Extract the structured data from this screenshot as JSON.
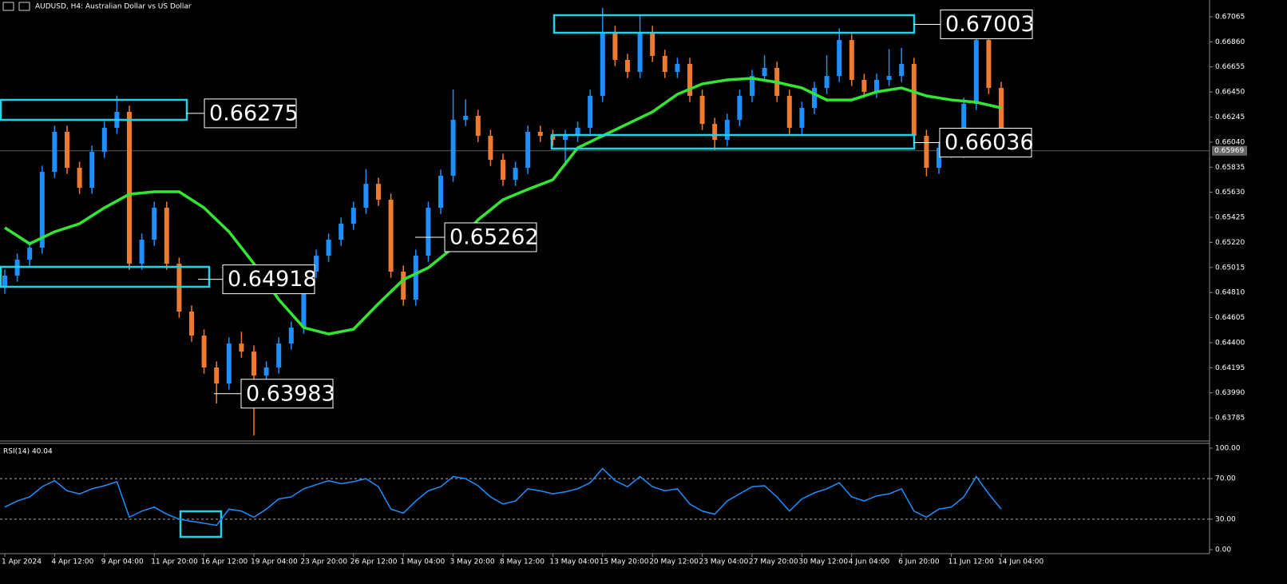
{
  "chart_data": [
    {
      "type": "candlestick",
      "title": "AUDUSD, H4:  Australian Dollar vs US Dollar",
      "categories": [
        "1 Apr 2024",
        null,
        null,
        null,
        "4 Apr 12:00",
        null,
        null,
        null,
        "9 Apr 04:00",
        null,
        null,
        null,
        "11 Apr 20:00",
        null,
        null,
        null,
        "16 Apr 12:00",
        null,
        null,
        null,
        "19 Apr 04:00",
        null,
        null,
        null,
        "23 Apr 20:00",
        null,
        null,
        null,
        "26 Apr 12:00",
        null,
        null,
        null,
        "1 May 04:00",
        null,
        null,
        null,
        "3 May 20:00",
        null,
        null,
        null,
        "8 May 12:00",
        null,
        null,
        null,
        "13 May 04:00",
        null,
        null,
        null,
        "15 May 20:00",
        null,
        null,
        null,
        "20 May 12:00",
        null,
        null,
        null,
        "23 May 04:00",
        null,
        null,
        null,
        "27 May 20:00",
        null,
        null,
        null,
        "30 May 12:00",
        null,
        null,
        null,
        "4 Jun 04:00",
        null,
        null,
        null,
        "6 Jun 20:00",
        null,
        null,
        null,
        "11 Jun 12:00",
        null,
        null,
        null,
        "14 Jun 04:00"
      ],
      "open": [
        0.6485,
        0.64948,
        0.65079,
        0.65177,
        0.65797,
        0.66124,
        0.6583,
        0.65667,
        0.65961,
        0.66157,
        0.66287,
        0.65046,
        0.65242,
        0.65503,
        0.65046,
        0.64654,
        0.64458,
        0.64197,
        0.64066,
        0.64393,
        0.64327,
        0.64131,
        0.64197,
        0.64393,
        0.64523,
        0.64981,
        0.65111,
        0.65242,
        0.65373,
        0.65503,
        0.65699,
        0.65569,
        0.64981,
        0.64752,
        0.65111,
        0.65503,
        0.65765,
        0.66222,
        0.66255,
        0.66091,
        0.65895,
        0.65732,
        0.6583,
        0.66124,
        0.66091,
        0.66059,
        0.66091,
        0.66157,
        0.66418,
        0.66941,
        0.66712,
        0.66614,
        0.66941,
        0.66745,
        0.66614,
        0.66679,
        0.66418,
        0.66189,
        0.66059,
        0.66222,
        0.66418,
        0.66581,
        0.66647,
        0.66418,
        0.66157,
        0.6632,
        0.66483,
        0.66581,
        0.66875,
        0.66549,
        0.66451,
        0.66549,
        0.66581,
        0.66679,
        0.66091,
        0.6583,
        0.65993,
        0.65961,
        0.66353,
        0.66875,
        0.66483
      ],
      "high": [
        0.64998,
        0.65129,
        0.65227,
        0.65847,
        0.66174,
        0.66174,
        0.6588,
        0.66011,
        0.66207,
        0.6642,
        0.66337,
        0.65292,
        0.65553,
        0.65553,
        0.65096,
        0.64704,
        0.64508,
        0.64247,
        0.64443,
        0.6449,
        0.64377,
        0.64247,
        0.64443,
        0.64573,
        0.65031,
        0.65161,
        0.65292,
        0.65423,
        0.65553,
        0.6582,
        0.65749,
        0.65619,
        0.65031,
        0.65161,
        0.65553,
        0.65815,
        0.6647,
        0.6639,
        0.66305,
        0.66141,
        0.65945,
        0.6588,
        0.66174,
        0.66174,
        0.66141,
        0.66141,
        0.66207,
        0.66468,
        0.67137,
        0.66991,
        0.66762,
        0.67084,
        0.66991,
        0.66795,
        0.66729,
        0.66729,
        0.66468,
        0.66239,
        0.66272,
        0.66468,
        0.66631,
        0.6675,
        0.66697,
        0.66468,
        0.6637,
        0.66533,
        0.6675,
        0.6697,
        0.66925,
        0.66599,
        0.66599,
        0.668,
        0.6681,
        0.66729,
        0.66141,
        0.66043,
        0.66043,
        0.66403,
        0.67006,
        0.66925,
        0.66533
      ],
      "low": [
        0.648,
        0.64898,
        0.65029,
        0.65127,
        0.65747,
        0.6578,
        0.65617,
        0.65617,
        0.65911,
        0.66107,
        0.64996,
        0.64996,
        0.65192,
        0.64996,
        0.64604,
        0.64408,
        0.64147,
        0.63903,
        0.64016,
        0.64277,
        0.63641,
        0.64081,
        0.64147,
        0.64343,
        0.64473,
        0.64931,
        0.65061,
        0.65192,
        0.65323,
        0.65453,
        0.65519,
        0.64931,
        0.64702,
        0.64702,
        0.65061,
        0.65453,
        0.65715,
        0.66172,
        0.66041,
        0.65845,
        0.65682,
        0.65682,
        0.6578,
        0.66041,
        0.66009,
        0.6585,
        0.66041,
        0.66107,
        0.66368,
        0.66662,
        0.66564,
        0.66564,
        0.66695,
        0.66564,
        0.66564,
        0.66368,
        0.66139,
        0.65975,
        0.66009,
        0.66172,
        0.66368,
        0.66531,
        0.66368,
        0.66107,
        0.66107,
        0.6627,
        0.66433,
        0.66531,
        0.66499,
        0.66401,
        0.66401,
        0.66499,
        0.66531,
        0.66041,
        0.6576,
        0.6578,
        0.65911,
        0.65911,
        0.66303,
        0.66433,
        0.65919
      ],
      "close": [
        0.64948,
        0.65079,
        0.65177,
        0.65797,
        0.66124,
        0.6583,
        0.65667,
        0.65961,
        0.66157,
        0.66287,
        0.65046,
        0.65242,
        0.65503,
        0.65046,
        0.64654,
        0.64458,
        0.64197,
        0.64066,
        0.64393,
        0.64327,
        0.64131,
        0.64197,
        0.64393,
        0.64523,
        0.64981,
        0.65111,
        0.65242,
        0.65373,
        0.65503,
        0.65699,
        0.65569,
        0.64981,
        0.64752,
        0.65111,
        0.65503,
        0.65765,
        0.66222,
        0.66255,
        0.66091,
        0.65895,
        0.65732,
        0.6583,
        0.66124,
        0.66091,
        0.66059,
        0.66091,
        0.66157,
        0.66418,
        0.66941,
        0.66712,
        0.66614,
        0.66941,
        0.66745,
        0.66614,
        0.66679,
        0.66418,
        0.66189,
        0.66059,
        0.66222,
        0.66418,
        0.66581,
        0.66647,
        0.66418,
        0.66157,
        0.6632,
        0.66483,
        0.66581,
        0.66875,
        0.66549,
        0.66451,
        0.66549,
        0.66581,
        0.66679,
        0.66091,
        0.6583,
        0.65993,
        0.65961,
        0.66353,
        0.66875,
        0.66483,
        0.65969
      ],
      "up_color": "#1e8fff",
      "down_color": "#ee7a30",
      "ma_x": [
        0,
        2,
        4,
        6,
        8,
        10,
        12,
        14,
        16,
        18,
        20,
        22,
        24,
        26,
        28,
        30,
        32,
        34,
        36,
        38,
        40,
        42,
        44,
        46,
        48,
        50,
        52,
        54,
        56,
        58,
        60,
        62,
        64,
        66,
        68,
        70,
        72,
        74,
        76,
        78,
        80
      ],
      "ma_values": [
        0.6534,
        0.65209,
        0.65307,
        0.65373,
        0.65503,
        0.65614,
        0.65634,
        0.65634,
        0.65503,
        0.65307,
        0.65046,
        0.64752,
        0.64523,
        0.64471,
        0.6451,
        0.64719,
        0.64915,
        0.65013,
        0.65177,
        0.65405,
        0.65569,
        0.65654,
        0.65732,
        0.65993,
        0.66091,
        0.66189,
        0.66287,
        0.66431,
        0.66516,
        0.66549,
        0.66562,
        0.66529,
        0.66483,
        0.66385,
        0.66385,
        0.66451,
        0.66483,
        0.66418,
        0.66385,
        0.66366,
        0.6632
      ],
      "ma_color": "#33e633",
      "ylim": [
        0.63596,
        0.67202
      ],
      "yticks": [
        0.67065,
        {
          "value": 0.6686,
          "label": "0.66860"
        },
        0.66655,
        {
          "value": 0.6645,
          "label": "0.66450"
        },
        0.66245,
        {
          "value": 0.6604,
          "label": "0.66040"
        },
        0.65835,
        {
          "value": 0.6563,
          "label": "0.65630"
        },
        0.65425,
        {
          "value": 0.6522,
          "label": "0.65220"
        },
        0.65015,
        {
          "value": 0.6481,
          "label": "0.64810"
        },
        0.64605,
        {
          "value": 0.644,
          "label": "0.64400"
        },
        0.64195,
        {
          "value": 0.6399,
          "label": "0.63990"
        },
        0.63785
      ],
      "current_price": 0.65969,
      "annotations": [
        0.66275,
        0.64918,
        0.63983,
        0.65262,
        0.67003,
        0.66036
      ],
      "annotation_color": "#22d3e6"
    },
    {
      "type": "line",
      "title": "RSI(14) 40.04",
      "values": [
        42,
        48,
        52,
        62,
        68,
        58,
        55,
        60,
        63,
        67,
        32,
        38,
        42,
        35,
        30,
        28,
        26,
        24,
        40,
        38,
        32,
        40,
        50,
        52,
        60,
        64,
        68,
        65,
        67,
        70,
        62,
        40,
        36,
        48,
        58,
        62,
        72,
        70,
        63,
        52,
        45,
        48,
        60,
        58,
        55,
        57,
        60,
        66,
        80,
        68,
        62,
        72,
        62,
        58,
        60,
        45,
        38,
        35,
        48,
        55,
        62,
        63,
        52,
        38,
        50,
        56,
        60,
        66,
        52,
        48,
        53,
        55,
        60,
        38,
        32,
        40,
        42,
        52,
        72,
        55,
        40.04
      ],
      "color": "#1e8fff",
      "ylim": [
        -3.1,
        103.9
      ],
      "yticks": [
        {
          "value": 100,
          "label": "100.00"
        },
        {
          "value": 70,
          "label": "70.00"
        },
        {
          "value": 30,
          "label": "30.00"
        },
        {
          "value": 0,
          "label": "0.00"
        }
      ],
      "levels": [
        70,
        30
      ]
    }
  ]
}
